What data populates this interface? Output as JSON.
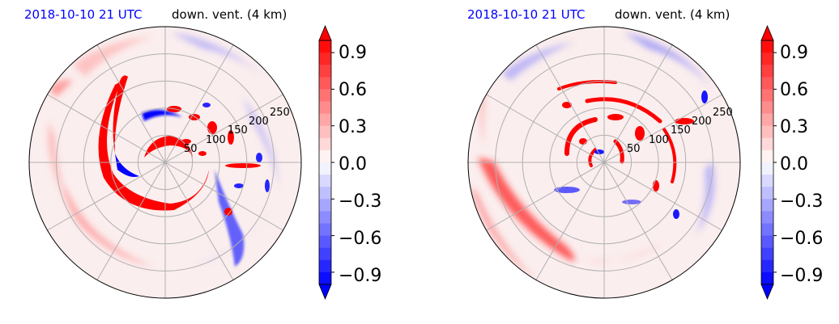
{
  "panels": [
    {
      "time_label": "2018-10-10 21 UTC",
      "field_label": "down. vent. (4 km)"
    },
    {
      "time_label": "2018-10-10 21 UTC",
      "field_label": "down. vent. (4 km)"
    }
  ],
  "chart_data": [
    {
      "type": "heatmap",
      "projection": "polar",
      "title_left": "2018-10-10 21 UTC",
      "title_right": "down. vent. (4 km)",
      "radial_ticks": [
        "50",
        "100",
        "150",
        "200",
        "250"
      ],
      "radial_tick_values": [
        50,
        100,
        150,
        200,
        250
      ],
      "angular_gridlines_deg": [
        0,
        30,
        60,
        90,
        120,
        150,
        180,
        210,
        240,
        270,
        300,
        330
      ],
      "grid": true,
      "colormap": "bwr",
      "colorbar": {
        "ticks": [
          "0.9",
          "0.6",
          "0.3",
          "0.0",
          "−0.3",
          "−0.6",
          "−0.9"
        ],
        "range": [
          -1.0,
          1.0
        ],
        "extend": "both"
      }
    },
    {
      "type": "heatmap",
      "projection": "polar",
      "title_left": "2018-10-10 21 UTC",
      "title_right": "down. vent. (4 km)",
      "radial_ticks": [
        "50",
        "100",
        "150",
        "200",
        "250"
      ],
      "radial_tick_values": [
        50,
        100,
        150,
        200,
        250
      ],
      "angular_gridlines_deg": [
        0,
        30,
        60,
        90,
        120,
        150,
        180,
        210,
        240,
        270,
        300,
        330
      ],
      "grid": true,
      "colormap": "bwr",
      "colorbar": {
        "ticks": [
          "0.9",
          "0.6",
          "0.3",
          "0.0",
          "−0.3",
          "−0.6",
          "−0.9"
        ],
        "range": [
          -1.0,
          1.0
        ],
        "extend": "both"
      }
    }
  ]
}
